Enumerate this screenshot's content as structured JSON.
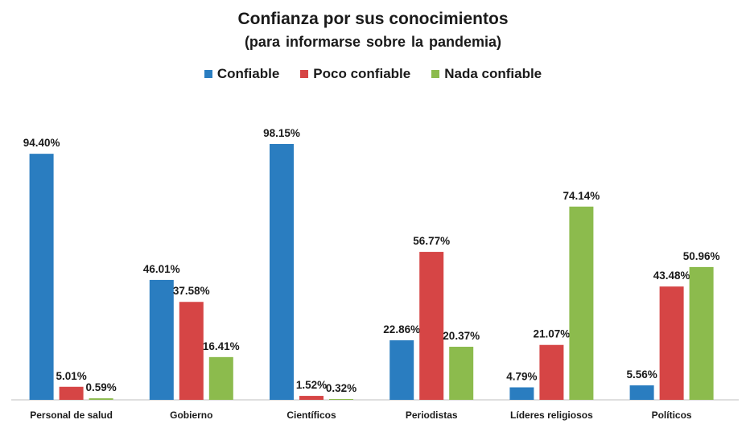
{
  "chart_data": {
    "type": "bar",
    "title": "Confianza por sus conocimientos",
    "subtitle": "(para informarse sobre la pandemia)",
    "categories": [
      "Personal de salud",
      "Gobierno",
      "Científicos",
      "Periodistas",
      "Líderes religiosos",
      "Políticos"
    ],
    "series": [
      {
        "name": "Confiable",
        "color": "#2a7dc0",
        "values": [
          94.4,
          46.01,
          98.15,
          22.86,
          4.79,
          5.56
        ],
        "labels": [
          "94.40%",
          "46.01%",
          "98.15%",
          "22.86%",
          "4.79%",
          "5.56%"
        ]
      },
      {
        "name": "Poco confiable",
        "color": "#d64545",
        "values": [
          5.01,
          37.58,
          1.52,
          56.77,
          21.07,
          43.48
        ],
        "labels": [
          "5.01%",
          "37.58%",
          "1.52%",
          "56.77%",
          "21.07%",
          "43.48%"
        ]
      },
      {
        "name": "Nada confiable",
        "color": "#8cbb4d",
        "values": [
          0.59,
          16.41,
          0.32,
          20.37,
          74.14,
          50.96
        ],
        "labels": [
          "0.59%",
          "16.41%",
          "0.32%",
          "20.37%",
          "74.14%",
          "50.96%"
        ]
      }
    ],
    "ylim": [
      0,
      100
    ],
    "grid": false,
    "legend_position": "top"
  }
}
